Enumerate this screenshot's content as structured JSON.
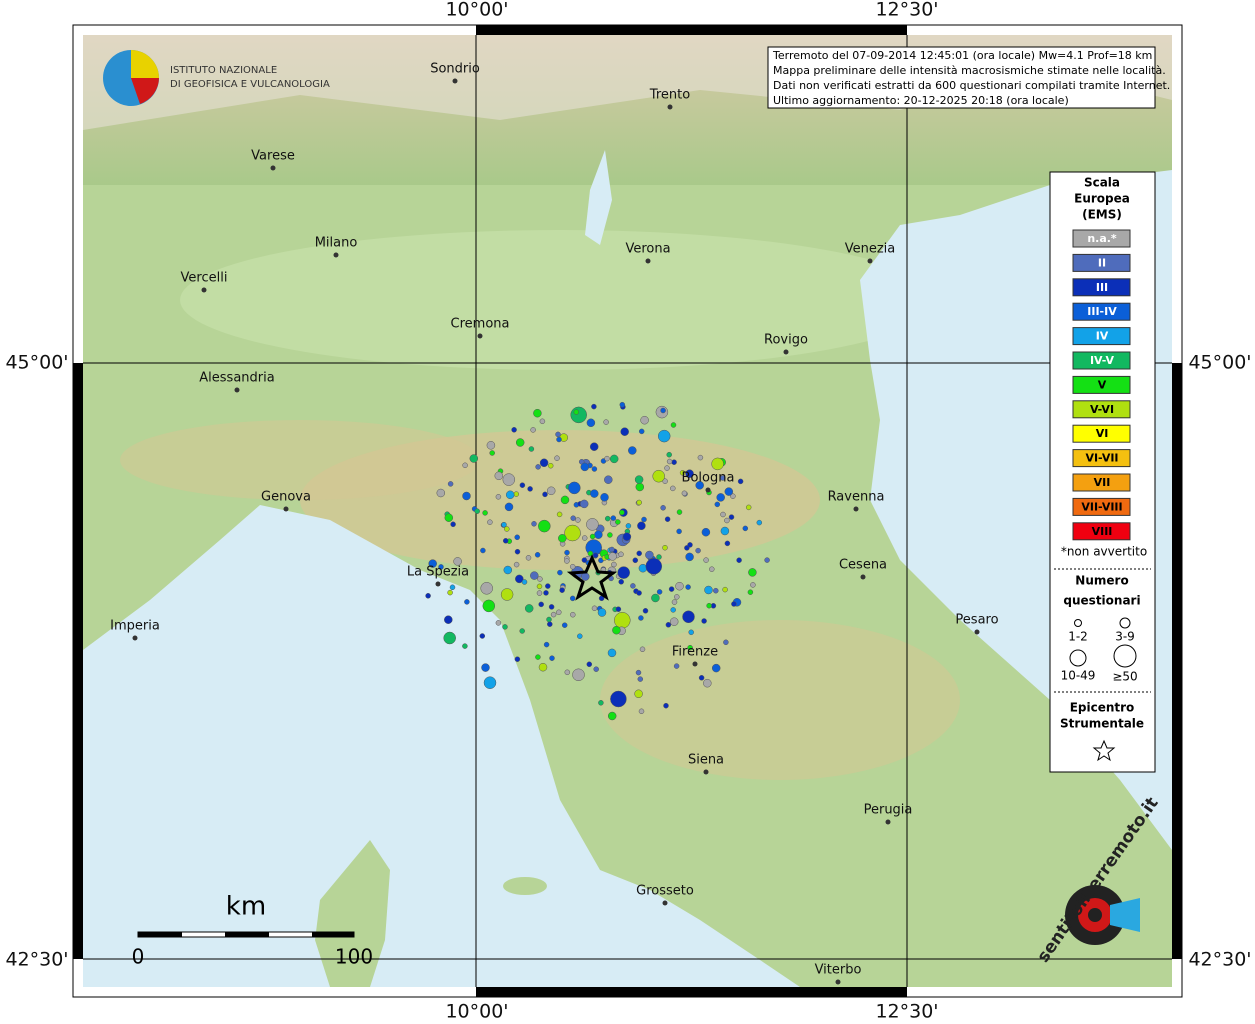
{
  "logo": {
    "line1": "ISTITUTO NAZIONALE",
    "line2": "DI GEOFISICA E VULCANOLOGIA"
  },
  "info": [
    "Terremoto del 07-09-2014 12:45:01 (ora locale) Mw=4.1 Prof=18 km",
    "Mappa preliminare delle intensità macrosismiche stimate nelle località.",
    "Dati non verificati estratti da 600 questionari compilati tramite Internet.",
    "Ultimo aggiornamento: 20-12-2025 20:18 (ora locale)"
  ],
  "coordinates": {
    "lon": [
      "10°00'",
      "12°30'"
    ],
    "lat": [
      "45°00'",
      "42°30'"
    ]
  },
  "cities": [
    "Sondrio",
    "Trento",
    "Varese",
    "Milano",
    "Verona",
    "Venezia",
    "Vercelli",
    "Cremona",
    "Rovigo",
    "Alessandria",
    "Bologna",
    "Genova",
    "Ravenna",
    "La Spezia",
    "Cesena",
    "Pesaro",
    "Imperia",
    "Firenze",
    "Siena",
    "Perugia",
    "Grosseto",
    "Viterbo"
  ],
  "legend": {
    "title": [
      "Scala",
      "Europea",
      "(EMS)"
    ],
    "classes": [
      {
        "label": "n.a.*",
        "color": "#a8a8a8"
      },
      {
        "label": "II",
        "color": "#4f6cbc"
      },
      {
        "label": "III",
        "color": "#0b2fb8"
      },
      {
        "label": "III-IV",
        "color": "#0b5fd8"
      },
      {
        "label": "IV",
        "color": "#12a2e8"
      },
      {
        "label": "IV-V",
        "color": "#12b860"
      },
      {
        "label": "V",
        "color": "#14e014"
      },
      {
        "label": "V-VI",
        "color": "#b0e010"
      },
      {
        "label": "VI",
        "color": "#ffff00"
      },
      {
        "label": "VI-VII",
        "color": "#f4c010"
      },
      {
        "label": "VII",
        "color": "#f4a010"
      },
      {
        "label": "VII-VIII",
        "color": "#f06a10"
      },
      {
        "label": "VIII",
        "color": "#f00010"
      }
    ],
    "note": "*non avvertito",
    "size_title": [
      "Numero",
      "questionari"
    ],
    "sizes": [
      "1-2",
      "3-9",
      "10-49",
      "≥50"
    ],
    "epicenter": [
      "Epicentro",
      "Strumentale"
    ]
  },
  "scale": {
    "unit": "km",
    "labels": [
      "0",
      "100"
    ]
  },
  "watermark": "sentitoilterremoto.it"
}
